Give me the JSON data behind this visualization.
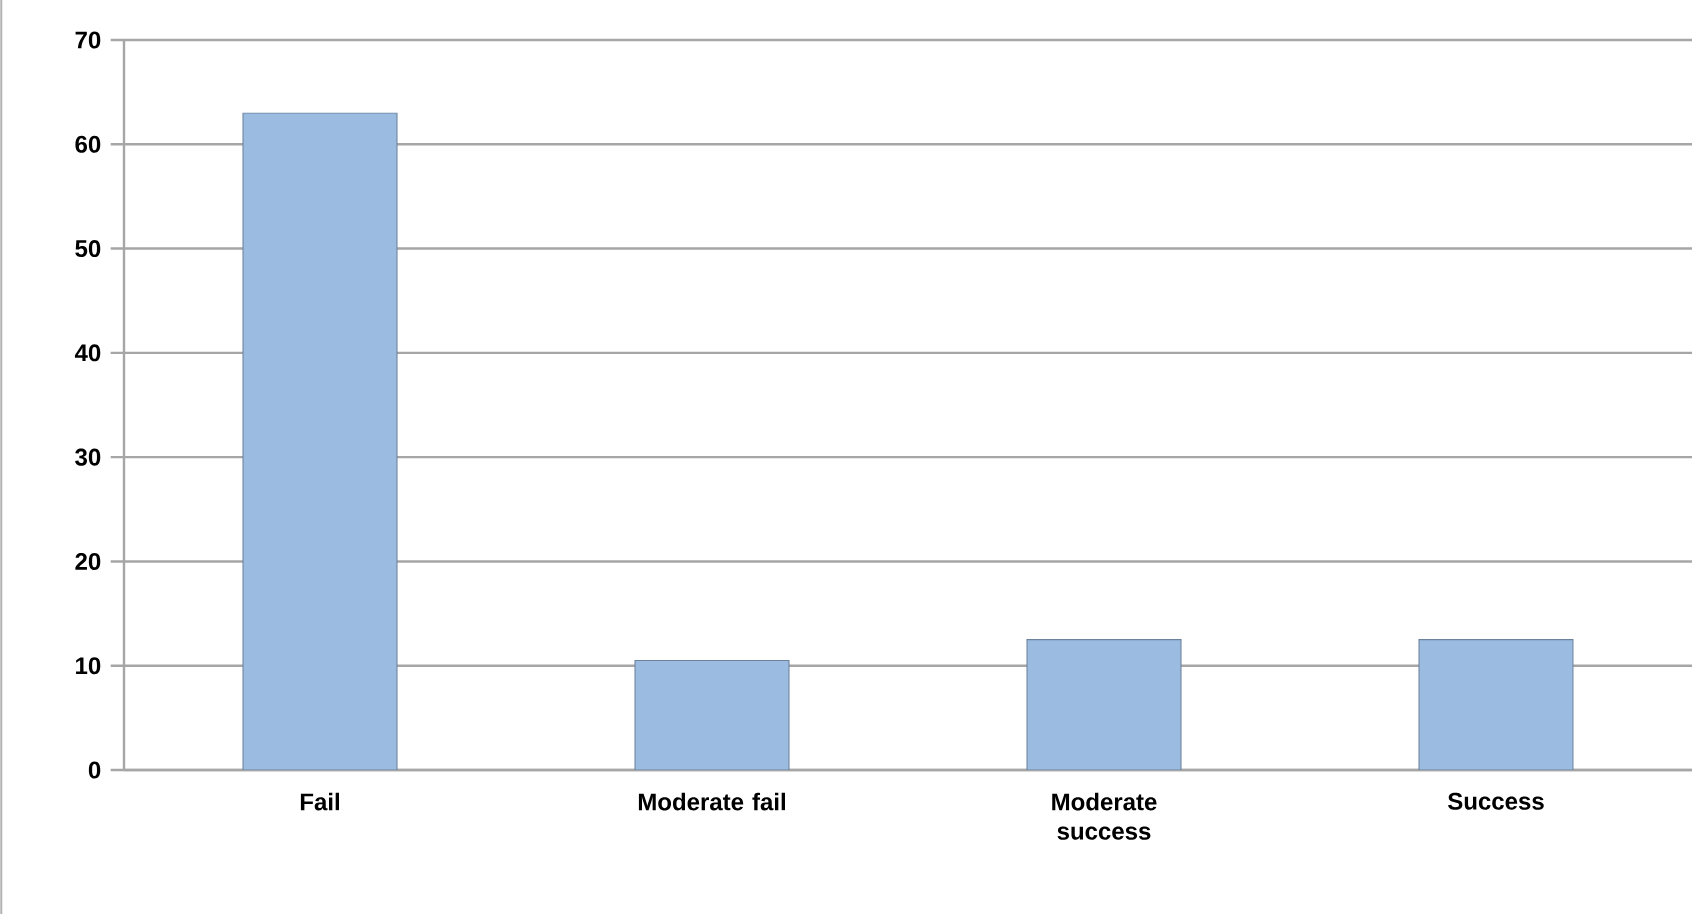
{
  "chart_data": {
    "type": "bar",
    "categories": [
      "Fail",
      "Moderate fail",
      "Moderate success",
      "Success"
    ],
    "values": [
      63,
      10.5,
      12.5,
      12.5
    ],
    "color": "#9bbbe0",
    "ylim": [
      0,
      70
    ],
    "yticks": [
      0,
      10,
      20,
      30,
      40,
      50,
      60,
      70
    ],
    "grid": "y"
  }
}
